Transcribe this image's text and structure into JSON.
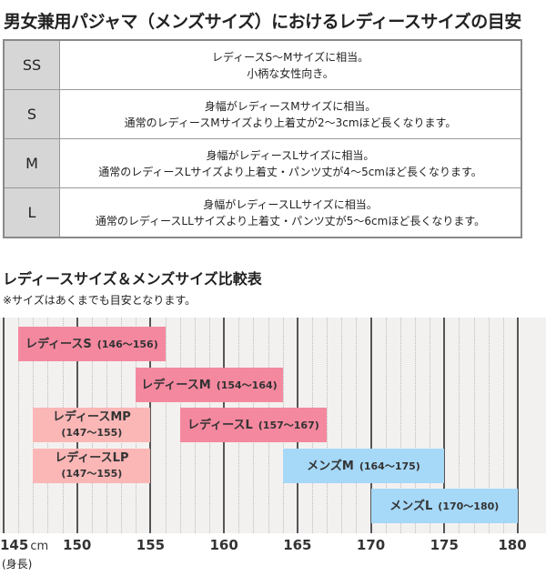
{
  "title": "男女兼用パジャマ（メンズサイズ）におけるレディースサイズの目安",
  "size_table": [
    {
      "size": "SS",
      "lines": [
        "レディースS～Mサイズに相当。",
        "小柄な女性向き。"
      ]
    },
    {
      "size": "S",
      "lines": [
        "身幅がレディースMサイズに相当。",
        "通常のレディースMサイズより上着丈が2～3cmほど長くなります。"
      ]
    },
    {
      "size": "M",
      "lines": [
        "身幅がレディースLサイズに相当。",
        "通常のレディースLサイズより上着丈・パンツ丈が4～5cmほど長くなります。"
      ]
    },
    {
      "size": "L",
      "lines": [
        "身幅がレディースLLサイズに相当。",
        "通常のレディースLLサイズより上着丈・パンツ丈が5～6cmほど長くなります。"
      ]
    }
  ],
  "comparison_title": "レディースサイズ＆メンズサイズ比較表",
  "note": "※サイズはあくまでも目安となります。",
  "chart_data": {
    "type": "bar",
    "orientation": "horizontal-range",
    "xlabel": "(身長)",
    "xunit": "cm",
    "xlim": [
      145,
      180
    ],
    "xticks": [
      "145",
      "150",
      "155",
      "160",
      "165",
      "170",
      "175",
      "180"
    ],
    "grid": true,
    "series": [
      {
        "label": "レディースS",
        "range_label": "(146～156)",
        "start": 146,
        "end": 156,
        "color": "#f4889f",
        "row": 0
      },
      {
        "label": "レディースM",
        "range_label": "(154～164)",
        "start": 154,
        "end": 164,
        "color": "#f4889f",
        "row": 1
      },
      {
        "label": "レディースMP",
        "range_label": "(147～155)",
        "start": 147,
        "end": 155,
        "color": "#fbb6b6",
        "row": 2,
        "wrap": true
      },
      {
        "label": "レディースL",
        "range_label": "(157～167)",
        "start": 157,
        "end": 167,
        "color": "#f4889f",
        "row": 2
      },
      {
        "label": "レディースLP",
        "range_label": "(147～155)",
        "start": 147,
        "end": 155,
        "color": "#fbb6b6",
        "row": 3,
        "wrap": true
      },
      {
        "label": "メンズM",
        "range_label": "(164～175)",
        "start": 164,
        "end": 175,
        "color": "#a6d8f8",
        "row": 3
      },
      {
        "label": "メンズL",
        "range_label": "(170～180)",
        "start": 170,
        "end": 180,
        "color": "#a6d8f8",
        "row": 4
      }
    ]
  }
}
